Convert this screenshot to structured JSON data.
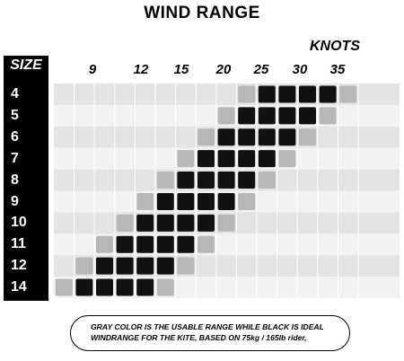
{
  "title": "WIND RANGE",
  "axis_unit_label": "KNOTS",
  "size_header": "SIZE",
  "note_lines": [
    "GRAY COLOR IS THE USABLE RANGE WHILE BLACK IS IDEAL",
    "WINDRANGE FOR THE KITE, BASED ON 75kg / 165lb rider,"
  ],
  "colors": {
    "ideal": "#111111",
    "usable": "#b7b7b7",
    "band_light": "#f2f2f2",
    "band_dark": "#e3e3e3",
    "background": "#ffffff"
  },
  "chart_data": {
    "type": "heatmap",
    "title": "WIND RANGE",
    "xlabel": "KNOTS",
    "ylabel": "SIZE",
    "x_ticks": [
      9,
      12,
      15,
      20,
      25,
      30,
      35
    ],
    "legend": {
      "ideal": "BLACK",
      "usable": "GRAY"
    },
    "kites": [
      {
        "size": "4",
        "usable_cols": [
          9,
          14
        ],
        "ideal_cols": [
          10,
          11,
          12,
          13
        ]
      },
      {
        "size": "5",
        "usable_cols": [
          8,
          13
        ],
        "ideal_cols": [
          9,
          10,
          11,
          12
        ]
      },
      {
        "size": "6",
        "usable_cols": [
          7,
          12
        ],
        "ideal_cols": [
          8,
          9,
          10,
          11
        ]
      },
      {
        "size": "7",
        "usable_cols": [
          6,
          11
        ],
        "ideal_cols": [
          7,
          8,
          9,
          10
        ]
      },
      {
        "size": "8",
        "usable_cols": [
          5,
          10
        ],
        "ideal_cols": [
          6,
          7,
          8,
          9
        ]
      },
      {
        "size": "9",
        "usable_cols": [
          4,
          9
        ],
        "ideal_cols": [
          5,
          6,
          7,
          8
        ]
      },
      {
        "size": "10",
        "usable_cols": [
          3,
          8
        ],
        "ideal_cols": [
          4,
          5,
          6,
          7
        ]
      },
      {
        "size": "11",
        "usable_cols": [
          2,
          7
        ],
        "ideal_cols": [
          3,
          4,
          5,
          6
        ]
      },
      {
        "size": "12",
        "usable_cols": [
          1,
          6
        ],
        "ideal_cols": [
          2,
          3,
          4,
          5
        ]
      },
      {
        "size": "14",
        "usable_cols": [
          0,
          5
        ],
        "ideal_cols": [
          1,
          2,
          3,
          4
        ]
      }
    ]
  }
}
